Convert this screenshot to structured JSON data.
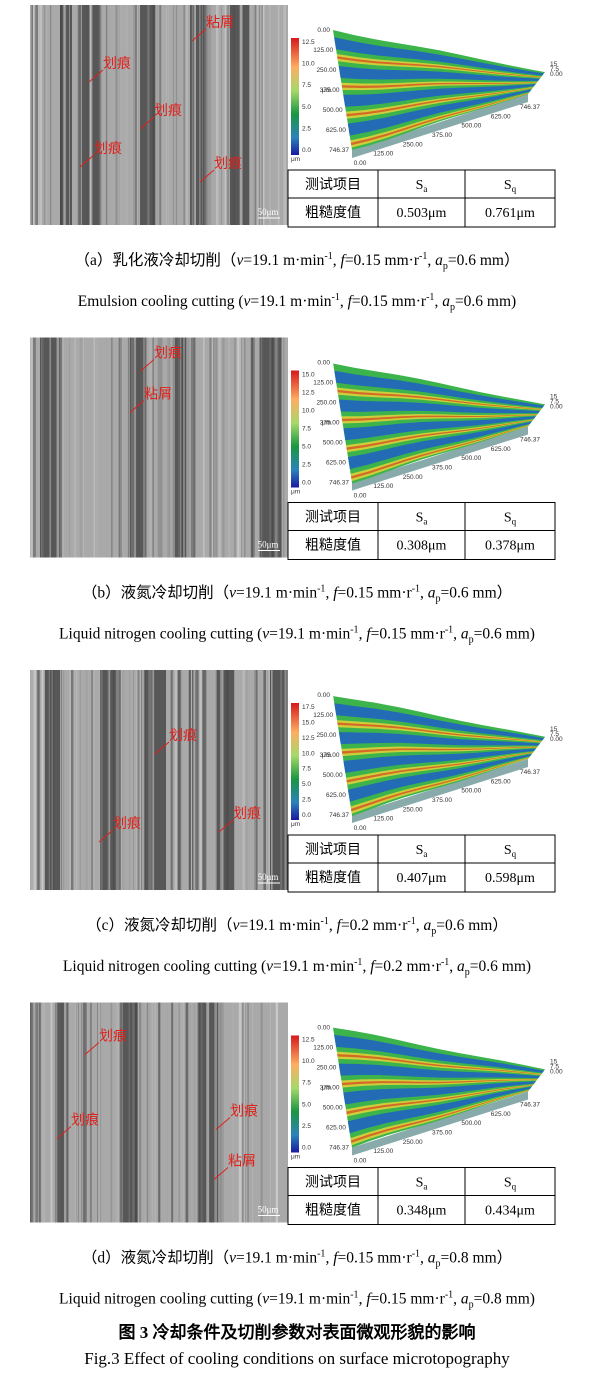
{
  "panels": [
    {
      "annotations": [
        "粘屑",
        "划痕",
        "划痕",
        "划痕",
        "划痕"
      ],
      "scale_bar": "50μm",
      "surface": {
        "colorbar_ticks": [
          "12.5",
          "10.0",
          "7.5",
          "5.0",
          "2.5",
          "0.0"
        ],
        "colorbar_unit": "μm",
        "y_labels": [
          "0.00",
          "125.00",
          "250.00",
          "375.00",
          "500.00",
          "625.00",
          "746.37"
        ],
        "y_unit": "μm",
        "x_labels": [
          "0.00",
          "125.00",
          "250.00",
          "375.00",
          "500.00",
          "625.00",
          "746.37"
        ],
        "z_labels": [
          "15",
          "7.5",
          "0.00"
        ]
      },
      "table": {
        "headers": [
          {
            "text": "测试项目"
          },
          {
            "text": "S",
            "sub": "a"
          },
          {
            "text": "S",
            "sub": "q"
          }
        ],
        "row": [
          "粗糙度值",
          "0.503μm",
          "0.761μm"
        ]
      },
      "caption_cn": [
        {
          "text": "（a）乳化液冷却切削（"
        },
        {
          "text": "v",
          "style": "italic"
        },
        {
          "text": "=19.1 m·min"
        },
        {
          "text": "-1",
          "style": "sup"
        },
        {
          "text": ", "
        },
        {
          "text": "f",
          "style": "italic"
        },
        {
          "text": "=0.15 mm·r"
        },
        {
          "text": "-1",
          "style": "sup"
        },
        {
          "text": ", "
        },
        {
          "text": "a",
          "style": "italic"
        },
        {
          "text": "p",
          "style": "sub"
        },
        {
          "text": "=0.6 mm）"
        }
      ],
      "caption_en": [
        {
          "text": "Emulsion cooling cutting ("
        },
        {
          "text": "v",
          "style": "italic"
        },
        {
          "text": "=19.1 m·min"
        },
        {
          "text": "-1",
          "style": "sup"
        },
        {
          "text": ", "
        },
        {
          "text": "f",
          "style": "italic"
        },
        {
          "text": "=0.15 mm·r"
        },
        {
          "text": "-1",
          "style": "sup"
        },
        {
          "text": ", "
        },
        {
          "text": "a",
          "style": "italic"
        },
        {
          "text": "p",
          "style": "sub"
        },
        {
          "text": "=0.6 mm)"
        }
      ]
    },
    {
      "annotations": [
        "划痕",
        "粘屑"
      ],
      "scale_bar": "50μm",
      "surface": {
        "colorbar_ticks": [
          "15.0",
          "12.5",
          "10.0",
          "7.5",
          "5.0",
          "2.5",
          "0.0"
        ],
        "colorbar_unit": "μm",
        "y_labels": [
          "0.00",
          "125.00",
          "250.00",
          "375.00",
          "500.00",
          "625.00",
          "746.37"
        ],
        "y_unit": "μm",
        "x_labels": [
          "0.00",
          "125.00",
          "250.00",
          "375.00",
          "500.00",
          "625.00",
          "746.37"
        ],
        "z_labels": [
          "15",
          "7.5",
          "0.00"
        ]
      },
      "table": {
        "headers": [
          {
            "text": "测试项目"
          },
          {
            "text": "S",
            "sub": "a"
          },
          {
            "text": "S",
            "sub": "q"
          }
        ],
        "row": [
          "粗糙度值",
          "0.308μm",
          "0.378μm"
        ]
      },
      "caption_cn": [
        {
          "text": "（b）液氮冷却切削（"
        },
        {
          "text": "v",
          "style": "italic"
        },
        {
          "text": "=19.1 m·min"
        },
        {
          "text": "-1",
          "style": "sup"
        },
        {
          "text": ", "
        },
        {
          "text": "f",
          "style": "italic"
        },
        {
          "text": "=0.15 mm·r"
        },
        {
          "text": "-1",
          "style": "sup"
        },
        {
          "text": ", "
        },
        {
          "text": "a",
          "style": "italic"
        },
        {
          "text": "p",
          "style": "sub"
        },
        {
          "text": "=0.6 mm）"
        }
      ],
      "caption_en": [
        {
          "text": "Liquid nitrogen cooling cutting ("
        },
        {
          "text": "v",
          "style": "italic"
        },
        {
          "text": "=19.1 m·min"
        },
        {
          "text": "-1",
          "style": "sup"
        },
        {
          "text": ", "
        },
        {
          "text": "f",
          "style": "italic"
        },
        {
          "text": "=0.15 mm·r"
        },
        {
          "text": "-1",
          "style": "sup"
        },
        {
          "text": ", "
        },
        {
          "text": "a",
          "style": "italic"
        },
        {
          "text": "p",
          "style": "sub"
        },
        {
          "text": "=0.6 mm)"
        }
      ]
    },
    {
      "annotations": [
        "划痕",
        "划痕",
        "划痕"
      ],
      "scale_bar": "50μm",
      "surface": {
        "colorbar_ticks": [
          "17.5",
          "15.0",
          "12.5",
          "10.0",
          "7.5",
          "5.0",
          "2.5",
          "0.0"
        ],
        "colorbar_unit": "μm",
        "y_labels": [
          "0.00",
          "125.00",
          "250.00",
          "375.00",
          "500.00",
          "625.00",
          "746.37"
        ],
        "y_unit": "μm",
        "x_labels": [
          "0.00",
          "125.00",
          "250.00",
          "375.00",
          "500.00",
          "625.00",
          "746.37"
        ],
        "z_labels": [
          "15",
          "7.5",
          "0.00"
        ]
      },
      "table": {
        "headers": [
          {
            "text": "测试项目"
          },
          {
            "text": "S",
            "sub": "a"
          },
          {
            "text": "S",
            "sub": "q"
          }
        ],
        "row": [
          "粗糙度值",
          "0.407μm",
          "0.598μm"
        ]
      },
      "caption_cn": [
        {
          "text": "（c）液氮冷却切削（"
        },
        {
          "text": "v",
          "style": "italic"
        },
        {
          "text": "=19.1 m·min"
        },
        {
          "text": "-1",
          "style": "sup"
        },
        {
          "text": ", "
        },
        {
          "text": "f",
          "style": "italic"
        },
        {
          "text": "=0.2 mm·r"
        },
        {
          "text": "-1",
          "style": "sup"
        },
        {
          "text": ", "
        },
        {
          "text": "a",
          "style": "italic"
        },
        {
          "text": "p",
          "style": "sub"
        },
        {
          "text": "=0.6 mm）"
        }
      ],
      "caption_en": [
        {
          "text": "Liquid nitrogen cooling cutting ("
        },
        {
          "text": "v",
          "style": "italic"
        },
        {
          "text": "=19.1 m·min"
        },
        {
          "text": "-1",
          "style": "sup"
        },
        {
          "text": ", "
        },
        {
          "text": "f",
          "style": "italic"
        },
        {
          "text": "=0.2 mm·r"
        },
        {
          "text": "-1",
          "style": "sup"
        },
        {
          "text": ", "
        },
        {
          "text": "a",
          "style": "italic"
        },
        {
          "text": "p",
          "style": "sub"
        },
        {
          "text": "=0.6 mm)"
        }
      ]
    },
    {
      "annotations": [
        "划痕",
        "划痕",
        "划痕",
        "粘屑"
      ],
      "scale_bar": "50μm",
      "surface": {
        "colorbar_ticks": [
          "12.5",
          "10.0",
          "7.5",
          "5.0",
          "2.5",
          "0.0"
        ],
        "colorbar_unit": "μm",
        "y_labels": [
          "0.00",
          "125.00",
          "250.00",
          "375.00",
          "500.00",
          "625.00",
          "746.37"
        ],
        "y_unit": "μm",
        "x_labels": [
          "0.00",
          "125.00",
          "250.00",
          "375.00",
          "500.00",
          "625.00",
          "746.37"
        ],
        "z_labels": [
          "15",
          "7.5",
          "0.00"
        ]
      },
      "table": {
        "headers": [
          {
            "text": "测试项目"
          },
          {
            "text": "S",
            "sub": "a"
          },
          {
            "text": "S",
            "sub": "q"
          }
        ],
        "row": [
          "粗糙度值",
          "0.348μm",
          "0.434μm"
        ]
      },
      "caption_cn": [
        {
          "text": "（d）液氮冷却切削（"
        },
        {
          "text": "v",
          "style": "italic"
        },
        {
          "text": "=19.1 m·min"
        },
        {
          "text": "-1",
          "style": "sup"
        },
        {
          "text": ", "
        },
        {
          "text": "f",
          "style": "italic"
        },
        {
          "text": "=0.15 mm·r"
        },
        {
          "text": "-1",
          "style": "sup"
        },
        {
          "text": ", "
        },
        {
          "text": "a",
          "style": "italic"
        },
        {
          "text": "p",
          "style": "sub"
        },
        {
          "text": "=0.8 mm）"
        }
      ],
      "caption_en": [
        {
          "text": "Liquid nitrogen cooling cutting ("
        },
        {
          "text": "v",
          "style": "italic"
        },
        {
          "text": "=19.1 m·min"
        },
        {
          "text": "-1",
          "style": "sup"
        },
        {
          "text": ", "
        },
        {
          "text": "f",
          "style": "italic"
        },
        {
          "text": "=0.15 mm·r"
        },
        {
          "text": "-1",
          "style": "sup"
        },
        {
          "text": ", "
        },
        {
          "text": "a",
          "style": "italic"
        },
        {
          "text": "p",
          "style": "sub"
        },
        {
          "text": "=0.8 mm)"
        }
      ]
    }
  ],
  "figure_title_cn": "图 3 冷却条件及切削参数对表面微观形貌的影响",
  "figure_title_en": "Fig.3 Effect of cooling conditions on surface microtopography"
}
